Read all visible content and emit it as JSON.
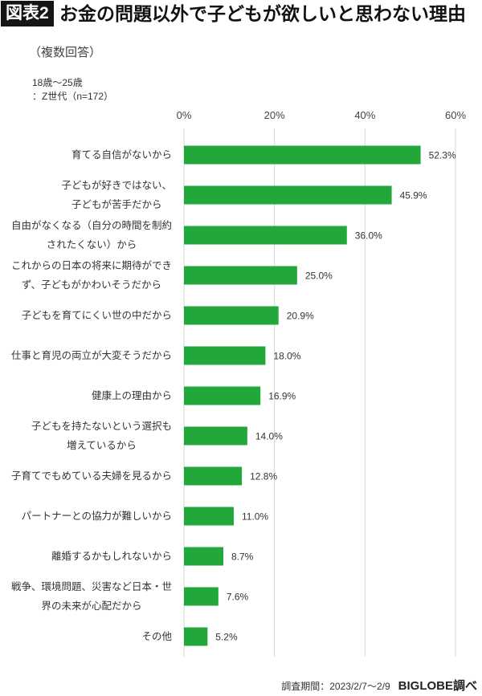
{
  "header": {
    "figure_label": "図表2"
  },
  "chart_data": {
    "type": "bar",
    "orientation": "horizontal",
    "title": "お金の問題以外で子どもが欲しいと思わない理由",
    "subtitle": "（複数回答）",
    "annotations": [
      "18歳〜25歳",
      "：Z世代（n=172）"
    ],
    "categories": [
      "育てる自信がないから",
      "子どもが好きではない、\n子どもが苦手だから",
      "自由がなくなる（自分の時間を制約\nされたくない）から",
      "これからの日本の将来に期待ができ\nず、子どもがかわいそうだから",
      "子どもを育てにくい世の中だから",
      "仕事と育児の両立が大変そうだから",
      "健康上の理由から",
      "子どもを持たないという選択も\n増えているから",
      "子育てでもめている夫婦を見るから",
      "パートナーとの協力が難しいから",
      "離婚するかもしれないから",
      "戦争、環境問題、災害など日本・世\n界の未来が心配だから",
      "その他"
    ],
    "values": [
      52.3,
      45.9,
      36.0,
      25.0,
      20.9,
      18.0,
      16.9,
      14.0,
      12.8,
      11.0,
      8.7,
      7.6,
      5.2
    ],
    "value_labels": [
      "52.3%",
      "45.9%",
      "36.0%",
      "25.0%",
      "20.9%",
      "18.0%",
      "16.9%",
      "14.0%",
      "12.8%",
      "11.0%",
      "8.7%",
      "7.6%",
      "5.2%"
    ],
    "xlim": [
      0,
      60
    ],
    "xticks": [
      0,
      20,
      40,
      60
    ],
    "xtick_labels": [
      "0%",
      "20%",
      "40%",
      "60%"
    ],
    "xtick_position": "top",
    "grid": "vertical",
    "legend": "none"
  },
  "footer": {
    "period": "調査期間：2023/2/7〜2/9",
    "source": "BIGLOBE調べ"
  },
  "colors": {
    "bar": "#22a83a",
    "gridline": "#d6d6d6"
  }
}
